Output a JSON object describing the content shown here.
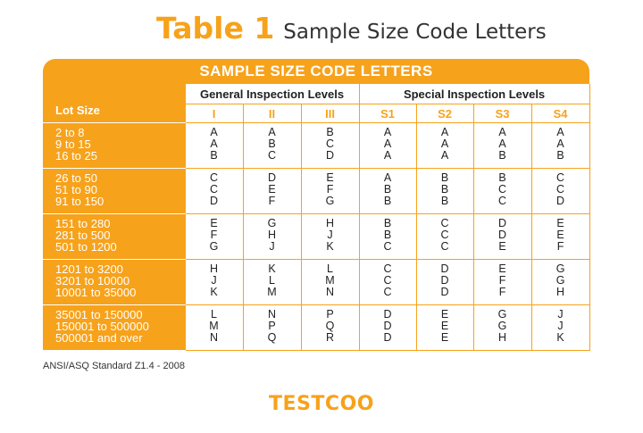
{
  "title": {
    "number": "Table 1",
    "text": "Sample Size Code Letters"
  },
  "table": {
    "banner": "SAMPLE SIZE CODE LETTERS",
    "group_general": "General Inspection Levels",
    "group_special": "Special Inspection Levels",
    "lot_size_header": "Lot Size",
    "codes": [
      "I",
      "II",
      "III",
      "S1",
      "S2",
      "S3",
      "S4"
    ],
    "rows": [
      {
        "lots": [
          "2 to 8",
          "9 to 15",
          "16 to 25"
        ],
        "cols": [
          [
            "A",
            "A",
            "B"
          ],
          [
            "A",
            "B",
            "C"
          ],
          [
            "B",
            "C",
            "D"
          ],
          [
            "A",
            "A",
            "A"
          ],
          [
            "A",
            "A",
            "A"
          ],
          [
            "A",
            "A",
            "B"
          ],
          [
            "A",
            "A",
            "B"
          ]
        ]
      },
      {
        "lots": [
          "26 to 50",
          "51 to 90",
          "91 to 150"
        ],
        "cols": [
          [
            "C",
            "C",
            "D"
          ],
          [
            "D",
            "E",
            "F"
          ],
          [
            "E",
            "F",
            "G"
          ],
          [
            "A",
            "B",
            "B"
          ],
          [
            "B",
            "B",
            "B"
          ],
          [
            "B",
            "C",
            "C"
          ],
          [
            "C",
            "C",
            "D"
          ]
        ]
      },
      {
        "lots": [
          "151 to 280",
          "281 to 500",
          "501 to 1200"
        ],
        "cols": [
          [
            "E",
            "F",
            "G"
          ],
          [
            "G",
            "H",
            "J"
          ],
          [
            "H",
            "J",
            "K"
          ],
          [
            "B",
            "B",
            "C"
          ],
          [
            "C",
            "C",
            "C"
          ],
          [
            "D",
            "D",
            "E"
          ],
          [
            "E",
            "E",
            "F"
          ]
        ]
      },
      {
        "lots": [
          "1201 to 3200",
          "3201 to 10000",
          "10001 to 35000"
        ],
        "cols": [
          [
            "H",
            "J",
            "K"
          ],
          [
            "K",
            "L",
            "M"
          ],
          [
            "L",
            "M",
            "N"
          ],
          [
            "C",
            "C",
            "C"
          ],
          [
            "D",
            "D",
            "D"
          ],
          [
            "E",
            "F",
            "F"
          ],
          [
            "G",
            "G",
            "H"
          ]
        ]
      },
      {
        "lots": [
          "35001 to 150000",
          "150001 to 500000",
          "500001 and over"
        ],
        "cols": [
          [
            "L",
            "M",
            "N"
          ],
          [
            "N",
            "P",
            "Q"
          ],
          [
            "P",
            "Q",
            "R"
          ],
          [
            "D",
            "D",
            "D"
          ],
          [
            "E",
            "E",
            "E"
          ],
          [
            "G",
            "G",
            "H"
          ],
          [
            "J",
            "J",
            "K"
          ]
        ]
      }
    ]
  },
  "note": "ANSI/ASQ Standard Z1.4 - 2008",
  "brand": "TESTCOO",
  "colors": {
    "accent": "#f7a21b"
  }
}
